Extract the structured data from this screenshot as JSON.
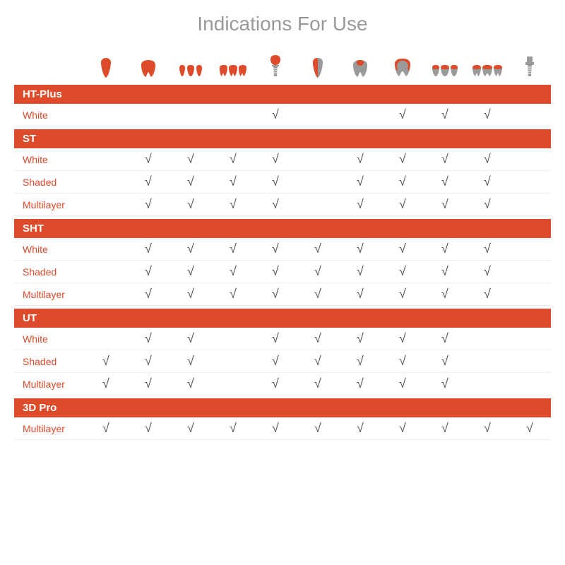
{
  "title": "Indications For Use",
  "colors": {
    "accent": "#dd4b2b",
    "title": "#999999",
    "check": "#555555",
    "gray_fill": "#9a9a9a",
    "post": "#9a9a9a"
  },
  "columns": 11,
  "categories": [
    {
      "name": "HT-Plus",
      "rows": [
        {
          "label": "White",
          "checks": [
            0,
            0,
            0,
            0,
            1,
            0,
            0,
            1,
            1,
            1,
            0
          ]
        }
      ]
    },
    {
      "name": "ST",
      "rows": [
        {
          "label": "White",
          "checks": [
            0,
            1,
            1,
            1,
            1,
            0,
            1,
            1,
            1,
            1,
            0
          ]
        },
        {
          "label": "Shaded",
          "checks": [
            0,
            1,
            1,
            1,
            1,
            0,
            1,
            1,
            1,
            1,
            0
          ]
        },
        {
          "label": "Multilayer",
          "checks": [
            0,
            1,
            1,
            1,
            1,
            0,
            1,
            1,
            1,
            1,
            0
          ]
        }
      ]
    },
    {
      "name": "SHT",
      "rows": [
        {
          "label": "White",
          "checks": [
            0,
            1,
            1,
            1,
            1,
            1,
            1,
            1,
            1,
            1,
            0
          ]
        },
        {
          "label": "Shaded",
          "checks": [
            0,
            1,
            1,
            1,
            1,
            1,
            1,
            1,
            1,
            1,
            0
          ]
        },
        {
          "label": "Multilayer",
          "checks": [
            0,
            1,
            1,
            1,
            1,
            1,
            1,
            1,
            1,
            1,
            0
          ]
        }
      ]
    },
    {
      "name": "UT",
      "rows": [
        {
          "label": "White",
          "checks": [
            0,
            1,
            1,
            0,
            1,
            1,
            1,
            1,
            1,
            0,
            0
          ]
        },
        {
          "label": "Shaded",
          "checks": [
            1,
            1,
            1,
            0,
            1,
            1,
            1,
            1,
            1,
            0,
            0
          ]
        },
        {
          "label": "Multilayer",
          "checks": [
            1,
            1,
            1,
            0,
            1,
            1,
            1,
            1,
            1,
            0,
            0
          ]
        }
      ]
    },
    {
      "name": "3D Pro",
      "rows": [
        {
          "label": "Multilayer",
          "checks": [
            1,
            1,
            1,
            1,
            1,
            1,
            1,
            1,
            1,
            1,
            1
          ]
        }
      ]
    }
  ],
  "check_glyph": "√"
}
